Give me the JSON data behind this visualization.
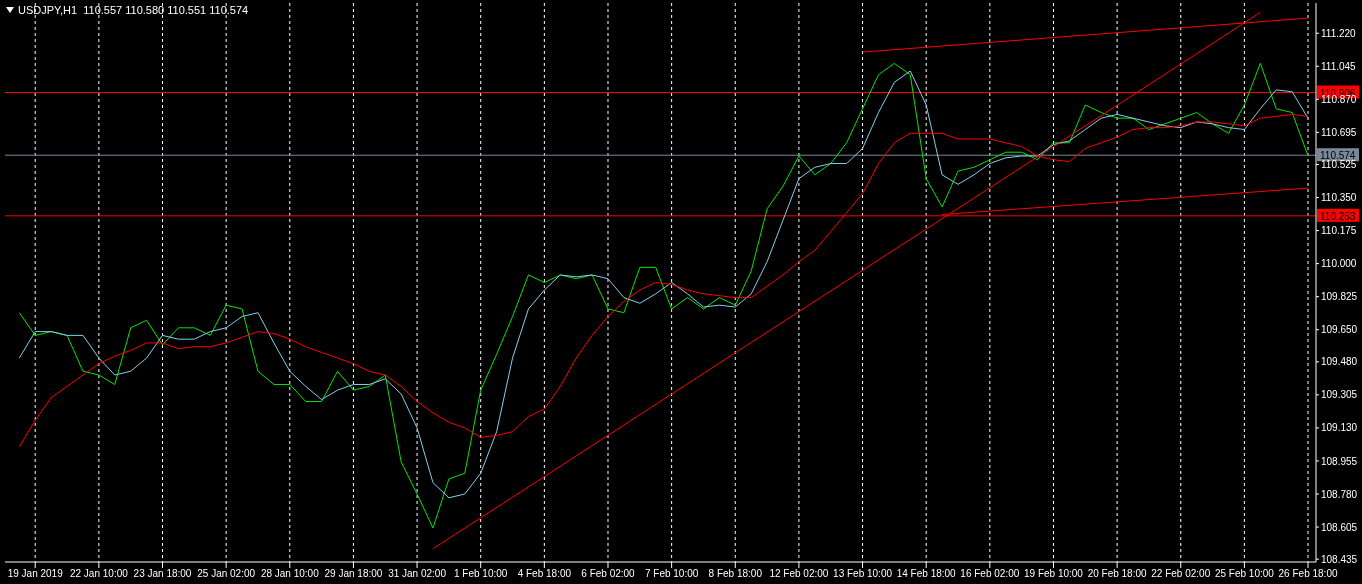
{
  "chart_data": {
    "type": "line",
    "title": "USDJPY,H1  110.557 110.580 110.551 110.574",
    "categories": [
      null,
      "19 Jan 2019",
      null,
      null,
      null,
      "22 Jan 10:00",
      null,
      null,
      null,
      "23 Jan 18:00",
      null,
      null,
      null,
      "25 Jan 02:00",
      null,
      null,
      null,
      "28 Jan 10:00",
      null,
      null,
      null,
      "29 Jan 18:00",
      null,
      null,
      null,
      "31 Jan 02:00",
      null,
      null,
      null,
      "1 Feb 10:00",
      null,
      null,
      null,
      "4 Feb 18:00",
      null,
      null,
      null,
      "6 Feb 02:00",
      null,
      null,
      null,
      "7 Feb 10:00",
      null,
      null,
      null,
      "8 Feb 18:00",
      null,
      null,
      null,
      "12 Feb 02:00",
      null,
      null,
      null,
      "13 Feb 10:00",
      null,
      null,
      null,
      "14 Feb 18:00",
      null,
      null,
      null,
      "16 Feb 02:00",
      null,
      null,
      null,
      "19 Feb 10:00",
      null,
      null,
      null,
      "20 Feb 18:00",
      null,
      null,
      null,
      "22 Feb 02:00",
      null,
      null,
      null,
      "25 Feb 10:00",
      null,
      null,
      null,
      "26 Feb 18:00"
    ],
    "series": [
      {
        "color": "#00e600",
        "values": [
          109.74,
          109.62,
          109.64,
          109.62,
          109.43,
          109.41,
          109.36,
          109.66,
          109.7,
          109.57,
          109.66,
          109.66,
          109.62,
          109.78,
          109.76,
          109.43,
          109.36,
          109.36,
          109.27,
          109.27,
          109.43,
          109.33,
          109.35,
          109.41,
          108.95,
          108.78,
          108.6,
          108.86,
          108.89,
          109.33,
          109.52,
          109.72,
          109.94,
          109.9,
          109.94,
          109.92,
          109.94,
          109.76,
          109.74,
          109.98,
          109.98,
          109.76,
          109.82,
          109.76,
          109.82,
          109.78,
          109.96,
          110.29,
          110.41,
          110.57,
          110.47,
          110.53,
          110.64,
          110.82,
          111.0,
          111.06,
          111.0,
          110.45,
          110.3,
          110.49,
          110.51,
          110.55,
          110.59,
          110.59,
          110.55,
          110.64,
          110.64,
          110.84,
          110.8,
          110.77,
          110.77,
          110.71,
          110.74,
          110.77,
          110.8,
          110.74,
          110.69,
          110.84,
          111.06,
          110.82,
          110.8,
          110.57
        ]
      },
      {
        "color": "#87ceeb",
        "values": [
          109.5,
          109.64,
          109.64,
          109.62,
          109.62,
          109.5,
          109.41,
          109.43,
          109.5,
          109.62,
          109.6,
          109.6,
          109.64,
          109.66,
          109.72,
          109.74,
          109.58,
          109.43,
          109.35,
          109.28,
          109.33,
          109.36,
          109.36,
          109.39,
          109.31,
          109.13,
          108.84,
          108.76,
          108.78,
          108.89,
          109.11,
          109.5,
          109.76,
          109.86,
          109.94,
          109.93,
          109.94,
          109.92,
          109.82,
          109.79,
          109.84,
          109.9,
          109.84,
          109.77,
          109.78,
          109.77,
          109.84,
          110.01,
          110.23,
          110.45,
          110.51,
          110.53,
          110.53,
          110.61,
          110.8,
          110.96,
          111.02,
          110.84,
          110.47,
          110.42,
          110.47,
          110.53,
          110.56,
          110.57,
          110.57,
          110.63,
          110.65,
          110.71,
          110.77,
          110.79,
          110.77,
          110.75,
          110.73,
          110.72,
          110.75,
          110.74,
          110.72,
          110.71,
          110.82,
          110.92,
          110.91,
          110.77
        ]
      },
      {
        "color": "#ff0000",
        "values": [
          109.03,
          109.17,
          109.29,
          109.35,
          109.41,
          109.47,
          109.51,
          109.54,
          109.58,
          109.58,
          109.55,
          109.56,
          109.56,
          109.58,
          109.61,
          109.64,
          109.63,
          109.6,
          109.56,
          109.53,
          109.5,
          109.47,
          109.43,
          109.41,
          109.35,
          109.27,
          109.21,
          109.16,
          109.13,
          109.08,
          109.09,
          109.11,
          109.19,
          109.23,
          109.35,
          109.5,
          109.62,
          109.72,
          109.8,
          109.86,
          109.9,
          109.89,
          109.86,
          109.84,
          109.83,
          109.82,
          109.82,
          109.88,
          109.94,
          110.01,
          110.07,
          110.17,
          110.27,
          110.37,
          110.53,
          110.64,
          110.69,
          110.69,
          110.69,
          110.66,
          110.66,
          110.66,
          110.64,
          110.62,
          110.57,
          110.55,
          110.54,
          110.61,
          110.64,
          110.67,
          110.71,
          110.72,
          110.72,
          110.73,
          110.75,
          110.75,
          110.74,
          110.73,
          110.77,
          110.78,
          110.79,
          110.78
        ]
      },
      {
        "color": "#ff0000",
        "values": [
          null,
          null,
          null,
          null,
          null,
          null,
          null,
          null,
          null,
          null,
          null,
          null,
          null,
          null,
          null,
          null,
          null,
          null,
          null,
          null,
          null,
          null,
          null,
          null,
          null,
          null,
          108.49,
          null,
          null,
          null,
          null,
          null,
          null,
          null,
          null,
          null,
          null,
          null,
          null,
          null,
          null,
          null,
          null,
          null,
          null,
          null,
          null,
          null,
          null,
          null,
          null,
          null,
          null,
          null,
          null,
          null,
          null,
          null,
          null,
          null,
          null,
          null,
          null,
          null,
          null,
          null,
          null,
          null,
          null,
          null,
          null,
          null,
          null,
          null,
          null,
          null,
          null,
          null,
          111.33,
          null,
          null,
          null
        ]
      },
      {
        "color": "#ff0000",
        "values": [
          null,
          null,
          null,
          null,
          null,
          null,
          null,
          null,
          null,
          null,
          null,
          null,
          null,
          null,
          null,
          null,
          null,
          null,
          null,
          null,
          null,
          null,
          null,
          null,
          null,
          null,
          null,
          null,
          null,
          null,
          null,
          null,
          null,
          null,
          null,
          null,
          null,
          null,
          null,
          null,
          null,
          null,
          null,
          null,
          null,
          null,
          null,
          null,
          null,
          null,
          null,
          null,
          null,
          111.12,
          null,
          null,
          null,
          null,
          null,
          null,
          null,
          null,
          null,
          null,
          null,
          null,
          null,
          null,
          null,
          null,
          null,
          null,
          null,
          null,
          null,
          null,
          null,
          null,
          null,
          null,
          null,
          111.3
        ]
      },
      {
        "color": "#ff0000",
        "values": [
          null,
          null,
          null,
          null,
          null,
          null,
          null,
          null,
          null,
          null,
          null,
          null,
          null,
          null,
          null,
          null,
          null,
          null,
          null,
          null,
          null,
          null,
          null,
          null,
          null,
          null,
          null,
          null,
          null,
          null,
          null,
          null,
          null,
          null,
          null,
          null,
          null,
          null,
          null,
          null,
          null,
          null,
          null,
          null,
          null,
          null,
          null,
          null,
          null,
          null,
          null,
          null,
          null,
          null,
          null,
          null,
          null,
          null,
          110.26,
          null,
          null,
          null,
          null,
          null,
          null,
          null,
          null,
          null,
          null,
          null,
          null,
          null,
          null,
          null,
          null,
          null,
          null,
          null,
          null,
          null,
          null,
          110.4
        ]
      }
    ],
    "ylim": [
      108.42,
      111.38
    ],
    "yticks": [
      108.435,
      108.605,
      {
        "value": 108.78,
        "label": "108.780"
      },
      108.955,
      {
        "value": 109.13,
        "label": "109.130"
      },
      109.305,
      {
        "value": 109.48,
        "label": "109.480"
      },
      {
        "value": 109.65,
        "label": "109.650"
      },
      109.825,
      {
        "value": 110,
        "label": "110.000"
      },
      110.175,
      {
        "value": 110.35,
        "label": "110.350"
      },
      110.525,
      110.695,
      {
        "value": 110.87,
        "label": "110.870"
      },
      111.045,
      {
        "value": 111.22,
        "label": "111.220"
      }
    ],
    "ref_lines": [
      {
        "axis": "y",
        "value": 110.906,
        "label": "110.906",
        "color": "#ff0000"
      },
      {
        "axis": "y",
        "value": 110.574,
        "label": "110.574",
        "color": "#778899"
      },
      {
        "axis": "y",
        "value": 110.253,
        "label": "110.253",
        "color": "#ff0000"
      }
    ],
    "grid": "x",
    "marker": "none",
    "line_style": "solid"
  }
}
